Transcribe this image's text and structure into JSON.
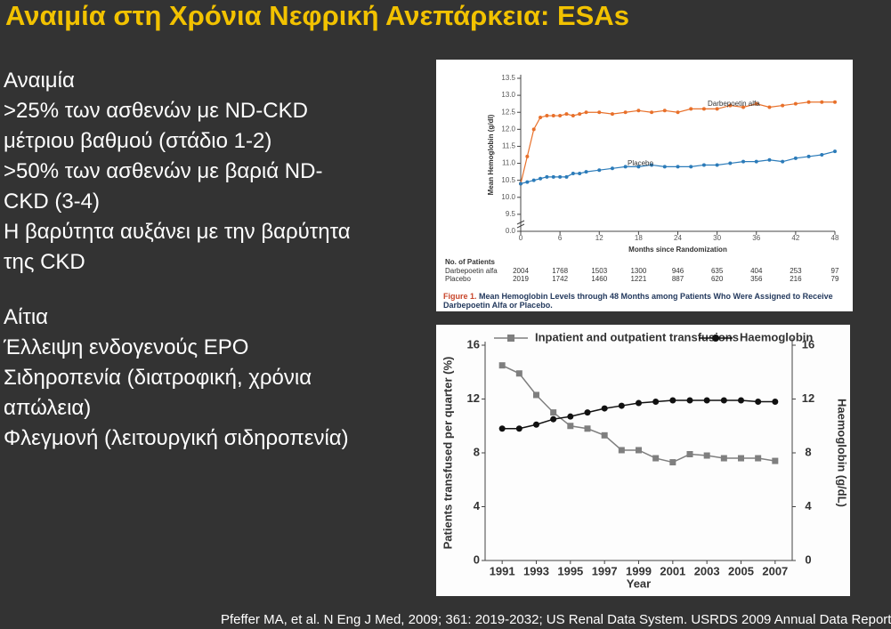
{
  "title": "Αναιμία στη Χρόνια Νεφρική Ανεπάρκεια: ESAs",
  "section1": {
    "heading": "Αναιμία",
    "lines": [
      ">25% των ασθενών με  ND-CKD",
      "μέτριου βαθμού (στάδιο 1-2)",
      ">50% των ασθενών με βαριά ND-",
      "CKD (3-4)",
      "Η βαρύτητα αυξάνει με την βαρύτητα",
      "της CKD"
    ]
  },
  "section2": {
    "heading": "Αίτια",
    "lines": [
      "Έλλειψη ενδογενούς EPO",
      "Σιδηροπενία (διατροφική, χρόνια",
      "απώλεια)",
      "Φλεγμονή (λειτουργική σιδηροπενία)"
    ]
  },
  "chart_data": [
    {
      "type": "line",
      "ylabel": "Mean Hemoglobin (g/dl)",
      "xlabel": "Months since Randomization",
      "legend": "inline",
      "axis_break": true,
      "x": [
        0,
        1,
        2,
        3,
        4,
        5,
        6,
        7,
        8,
        9,
        10,
        12,
        14,
        16,
        18,
        20,
        22,
        24,
        26,
        28,
        30,
        32,
        34,
        36,
        38,
        40,
        42,
        44,
        46,
        48
      ],
      "series": [
        {
          "name": "Darbepoetin alfa",
          "color": "#e8702a",
          "marker": "circle",
          "values": [
            10.4,
            11.2,
            12.0,
            12.35,
            12.4,
            12.4,
            12.4,
            12.45,
            12.4,
            12.45,
            12.5,
            12.5,
            12.45,
            12.5,
            12.55,
            12.5,
            12.55,
            12.5,
            12.6,
            12.6,
            12.6,
            12.7,
            12.65,
            12.75,
            12.65,
            12.7,
            12.75,
            12.8,
            12.8,
            12.8
          ]
        },
        {
          "name": "Placebo",
          "color": "#2b7bb9",
          "marker": "circle",
          "values": [
            10.4,
            10.45,
            10.5,
            10.55,
            10.6,
            10.6,
            10.6,
            10.6,
            10.7,
            10.7,
            10.75,
            10.8,
            10.85,
            10.9,
            10.9,
            10.95,
            10.9,
            10.9,
            10.9,
            10.95,
            10.95,
            11.0,
            11.05,
            11.05,
            11.1,
            11.05,
            11.15,
            11.2,
            11.25,
            11.35
          ]
        }
      ],
      "xlim": [
        0,
        48
      ],
      "xticks": [
        0,
        6,
        12,
        18,
        24,
        30,
        36,
        42,
        48
      ],
      "ylim": [
        9.0,
        13.5
      ],
      "yticks": [
        {
          "value": 0,
          "label": "0.0"
        },
        9.5,
        {
          "value": 10,
          "label": "10.0"
        },
        10.5,
        {
          "value": 11,
          "label": "11.0"
        },
        11.5,
        {
          "value": 12,
          "label": "12.0"
        },
        12.5,
        {
          "value": 13,
          "label": "13.0"
        },
        13.5
      ],
      "patients": {
        "title": "No. of Patients",
        "rows": [
          {
            "name": "Darbepoetin alfa",
            "counts": [
              2004,
              1768,
              1503,
              1300,
              946,
              635,
              404,
              253,
              97
            ]
          },
          {
            "name": "Placebo",
            "counts": [
              2019,
              1742,
              1460,
              1221,
              887,
              620,
              356,
              216,
              79
            ]
          }
        ]
      },
      "caption_label": "Figure 1.",
      "caption": "Mean Hemoglobin Levels through 48 Months among Patients Who Were Assigned to Receive Darbepoetin Alfa or Placebo."
    },
    {
      "type": "line",
      "ylabel": "Patients transfused per quarter (%)",
      "y2label": "Haemoglobin (g/dL)",
      "xlabel": "Year",
      "legend": "top",
      "x": [
        1991,
        1992,
        1993,
        1994,
        1995,
        1996,
        1997,
        1998,
        1999,
        2000,
        2001,
        2002,
        2003,
        2004,
        2005,
        2006,
        2007
      ],
      "series": [
        {
          "name": "Inpatient and outpatient transfusions",
          "color": "#7f7f7f",
          "marker": "square",
          "values": [
            14.5,
            13.9,
            12.3,
            11.0,
            10.0,
            9.8,
            9.3,
            8.2,
            8.2,
            7.6,
            7.3,
            7.9,
            7.8,
            7.6,
            7.6,
            7.6,
            7.4
          ]
        },
        {
          "name": "Haemoglobin",
          "color": "#111111",
          "marker": "circle",
          "axis": "y2",
          "values": [
            9.8,
            9.8,
            10.1,
            10.5,
            10.7,
            11.0,
            11.3,
            11.5,
            11.7,
            11.8,
            11.9,
            11.9,
            11.9,
            11.9,
            11.9,
            11.8,
            11.8
          ]
        }
      ],
      "xlim": [
        1990,
        2008
      ],
      "xticks": [
        1991,
        1993,
        1995,
        1997,
        1999,
        2001,
        2003,
        2005,
        2007
      ],
      "ylim": [
        0,
        16
      ],
      "yticks": [
        0,
        4,
        8,
        12,
        16
      ],
      "y2lim": [
        0,
        16
      ],
      "y2ticks": [
        0,
        4,
        8,
        12,
        16
      ]
    }
  ],
  "citation": "Pfeffer MA, et al. N Eng J Med, 2009; 361: 2019-2032; US Renal Data System. USRDS 2009 Annual Data Report"
}
